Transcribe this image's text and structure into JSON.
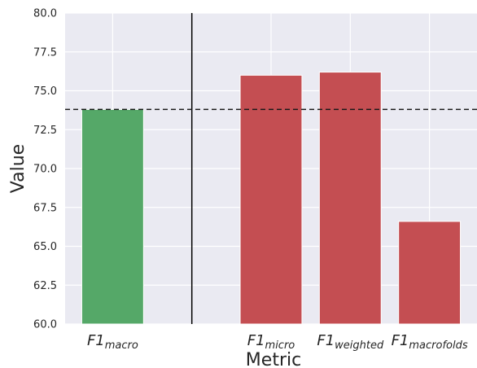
{
  "chart_data": {
    "type": "bar",
    "categories": [
      {
        "main": "F1",
        "sub": "macro",
        "x": 0
      },
      {
        "main": "F1",
        "sub": "micro",
        "x": 2
      },
      {
        "main": "F1",
        "sub": "weighted",
        "x": 3
      },
      {
        "main": "F1",
        "sub": "macrofolds",
        "x": 4
      }
    ],
    "values": [
      73.8,
      76.0,
      76.2,
      66.6
    ],
    "bar_colors": [
      "#55a868",
      "#c44e52",
      "#c44e52",
      "#c44e52"
    ],
    "xlabel": "Metric",
    "ylabel": "Value",
    "ylim": [
      60.0,
      80.0
    ],
    "yticks": [
      "60.0",
      "62.5",
      "65.0",
      "67.5",
      "70.0",
      "72.5",
      "75.0",
      "77.5",
      "80.0"
    ],
    "xlim": [
      -0.6,
      4.6
    ],
    "xgrid": [
      0,
      1,
      2,
      3,
      4
    ],
    "reference_line": {
      "style": "dashed",
      "value": 73.8,
      "color": "#1a1a1a"
    },
    "separator_line": {
      "style": "solid",
      "x": 1,
      "color": "#000000"
    },
    "background": "#eaeaf2",
    "grid": true
  }
}
